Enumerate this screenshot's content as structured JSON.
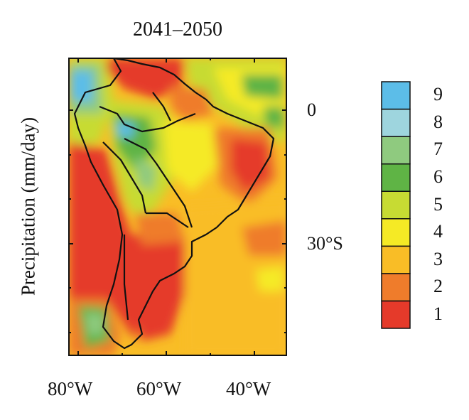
{
  "title": "2041–2050",
  "y_axis_label": "Precipitation (mm/day)",
  "lat_labels": [
    "0",
    "30°S"
  ],
  "lon_labels": [
    "80°W",
    "60°W",
    "40°W"
  ],
  "colorbar": {
    "levels": [
      "1",
      "2",
      "3",
      "4",
      "5",
      "6",
      "7",
      "8",
      "9"
    ],
    "colors": [
      "#e53a2a",
      "#ef7c2b",
      "#f9bd26",
      "#f5ea25",
      "#c7db33",
      "#5fb445",
      "#8fca7f",
      "#9ed5de",
      "#5cbde8"
    ]
  },
  "map_extent": {
    "lon_min": -82,
    "lon_max": -33,
    "lat_min": -57,
    "lat_max": 12
  }
}
